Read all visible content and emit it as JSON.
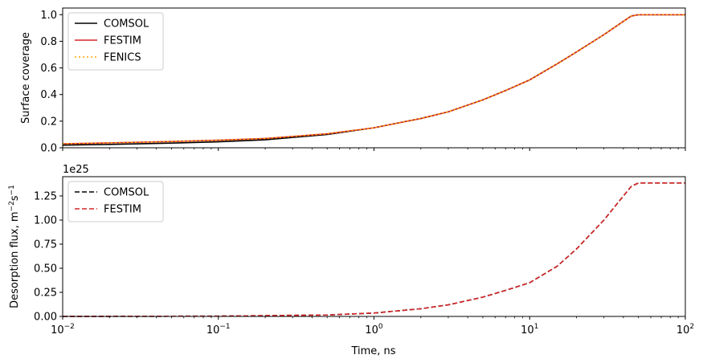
{
  "figure": {
    "xlabel": "Time, ns",
    "x_tick_labels": [
      {
        "base": "10",
        "exp": "−2"
      },
      {
        "base": "10",
        "exp": "−1"
      },
      {
        "base": "10",
        "exp": "0"
      },
      {
        "base": "10",
        "exp": "1"
      },
      {
        "base": "10",
        "exp": "2"
      }
    ]
  },
  "chart_data": [
    {
      "type": "line",
      "title": "",
      "xlabel": "Time, ns",
      "ylabel": "Surface coverage",
      "xscale": "log",
      "xlim": [
        0.01,
        100
      ],
      "ylim": [
        0,
        1.05
      ],
      "y_ticks": [
        0.0,
        0.2,
        0.4,
        0.6,
        0.8,
        1.0
      ],
      "y_tick_labels": [
        "0.0",
        "0.2",
        "0.4",
        "0.6",
        "0.8",
        "1.0"
      ],
      "legend_placement": "upper-left",
      "grid": false,
      "x": [
        0.01,
        0.02,
        0.05,
        0.1,
        0.2,
        0.5,
        1,
        2,
        3,
        5,
        7,
        10,
        15,
        20,
        30,
        40,
        45,
        50,
        70,
        100
      ],
      "series": [
        {
          "name": "COMSOL",
          "color": "#000000",
          "dash": "solid",
          "values": [
            0.02,
            0.025,
            0.035,
            0.045,
            0.06,
            0.1,
            0.15,
            0.22,
            0.27,
            0.36,
            0.43,
            0.51,
            0.63,
            0.72,
            0.85,
            0.95,
            0.99,
            1.0,
            1.0,
            1.0
          ]
        },
        {
          "name": "FESTIM",
          "color": "#d62728",
          "dash": "solid",
          "values": [
            0.03,
            0.037,
            0.047,
            0.057,
            0.07,
            0.105,
            0.15,
            0.22,
            0.27,
            0.36,
            0.43,
            0.51,
            0.63,
            0.72,
            0.85,
            0.95,
            0.99,
            1.0,
            1.0,
            1.0
          ]
        },
        {
          "name": "FENICS",
          "color": "#ffa500",
          "dash": "dotted",
          "values": [
            0.03,
            0.037,
            0.047,
            0.057,
            0.07,
            0.105,
            0.15,
            0.22,
            0.27,
            0.36,
            0.43,
            0.51,
            0.63,
            0.72,
            0.85,
            0.95,
            0.99,
            1.0,
            1.0,
            1.0
          ]
        }
      ]
    },
    {
      "type": "line",
      "title": "",
      "xlabel": "Time, ns",
      "ylabel_text": "Desorption flux, m",
      "ylabel_sup1": "−2",
      "ylabel_s": "s",
      "ylabel_sup2": "−1",
      "offset_text": "1e25",
      "xscale": "log",
      "xlim": [
        0.01,
        100
      ],
      "ylim": [
        0,
        1.45
      ],
      "y_scale_factor": 1e+25,
      "y_ticks": [
        0.0,
        0.25,
        0.5,
        0.75,
        1.0,
        1.25
      ],
      "y_tick_labels": [
        "0.00",
        "0.25",
        "0.50",
        "0.75",
        "1.00",
        "1.25"
      ],
      "legend_placement": "upper-left",
      "grid": false,
      "x": [
        0.01,
        0.1,
        0.5,
        1,
        2,
        3,
        5,
        7,
        10,
        15,
        20,
        30,
        40,
        45,
        50,
        70,
        100
      ],
      "series": [
        {
          "name": "COMSOL",
          "color": "#000000",
          "dash": "dashed",
          "values": [
            0.0,
            0.003,
            0.015,
            0.035,
            0.08,
            0.12,
            0.2,
            0.27,
            0.35,
            0.52,
            0.7,
            1.0,
            1.25,
            1.35,
            1.385,
            1.385,
            1.385
          ]
        },
        {
          "name": "FESTIM",
          "color": "#d62728",
          "dash": "dashed",
          "values": [
            0.0,
            0.003,
            0.015,
            0.035,
            0.08,
            0.12,
            0.2,
            0.27,
            0.35,
            0.52,
            0.7,
            1.0,
            1.25,
            1.35,
            1.385,
            1.385,
            1.385
          ]
        }
      ]
    }
  ]
}
